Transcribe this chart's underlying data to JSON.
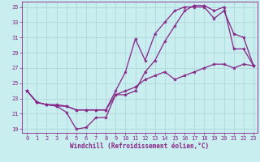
{
  "xlabel": "Windchill (Refroidissement éolien,°C)",
  "bg_color": "#c8eef0",
  "grid_color": "#b0d8da",
  "line_color": "#882288",
  "xlim_min": -0.5,
  "xlim_max": 23.4,
  "ylim_min": 18.5,
  "ylim_max": 35.7,
  "xticks": [
    0,
    1,
    2,
    3,
    4,
    5,
    6,
    7,
    8,
    9,
    10,
    11,
    12,
    13,
    14,
    15,
    16,
    17,
    18,
    19,
    20,
    21,
    22,
    23
  ],
  "yticks": [
    19,
    21,
    23,
    25,
    27,
    29,
    31,
    33,
    35
  ],
  "line1_x": [
    0,
    1,
    2,
    3,
    4,
    5,
    6,
    7,
    8,
    9,
    10,
    11,
    12,
    13,
    14,
    15,
    16,
    17,
    18,
    19,
    20,
    21,
    22,
    23
  ],
  "line1_y": [
    24.0,
    22.5,
    22.2,
    22.0,
    21.2,
    19.0,
    19.2,
    20.5,
    20.5,
    23.5,
    23.5,
    24.0,
    26.5,
    28.0,
    30.5,
    32.5,
    34.5,
    35.2,
    35.2,
    34.5,
    35.0,
    29.5,
    29.5,
    27.3
  ],
  "line2_x": [
    0,
    1,
    2,
    3,
    4,
    5,
    6,
    7,
    8,
    9,
    10,
    11,
    12,
    13,
    14,
    15,
    16,
    17,
    18,
    19,
    20,
    21,
    22,
    23
  ],
  "line2_y": [
    24.0,
    22.5,
    22.2,
    22.2,
    22.0,
    21.5,
    21.5,
    21.5,
    21.5,
    24.0,
    26.5,
    30.8,
    28.0,
    31.5,
    33.0,
    34.5,
    35.0,
    35.0,
    35.0,
    33.5,
    34.5,
    31.5,
    31.0,
    27.3
  ],
  "line3_x": [
    0,
    1,
    2,
    3,
    4,
    5,
    6,
    7,
    8,
    9,
    10,
    11,
    12,
    13,
    14,
    15,
    16,
    17,
    18,
    19,
    20,
    21,
    22,
    23
  ],
  "line3_y": [
    24.0,
    22.5,
    22.2,
    22.0,
    22.0,
    21.5,
    21.5,
    21.5,
    21.5,
    23.5,
    24.0,
    24.5,
    25.5,
    26.0,
    26.5,
    25.5,
    26.0,
    26.5,
    27.0,
    27.5,
    27.5,
    27.0,
    27.5,
    27.3
  ],
  "tick_fontsize": 5.0,
  "xlabel_fontsize": 5.5,
  "marker_size": 3.0,
  "line_width": 0.9
}
